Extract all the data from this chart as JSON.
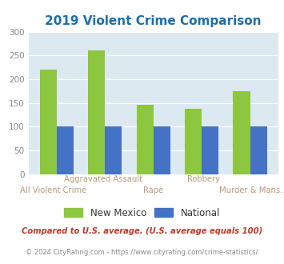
{
  "title": "2019 Violent Crime Comparison",
  "title_color": "#1a6faf",
  "categories": [
    "All Violent Crime",
    "Aggravated Assault",
    "Rape",
    "Robbery",
    "Murder & Mans..."
  ],
  "nm_values": [
    220,
    261,
    146,
    138,
    174
  ],
  "nat_values": [
    100,
    100,
    100,
    100,
    100
  ],
  "nm_color": "#8dc63f",
  "nat_color": "#4472c4",
  "ylim": [
    0,
    300
  ],
  "yticks": [
    0,
    50,
    100,
    150,
    200,
    250,
    300
  ],
  "plot_bg": "#dce9f0",
  "legend_nm": "New Mexico",
  "legend_nat": "National",
  "footnote1": "Compared to U.S. average. (U.S. average equals 100)",
  "footnote2": "© 2024 CityRating.com - https://www.cityrating.com/crime-statistics/",
  "footnote1_color": "#c0392b",
  "footnote2_color": "#888888",
  "footnote2_link_color": "#4472c4",
  "xtick_color": "#b8997a",
  "ytick_color": "#888888",
  "bar_width": 0.35
}
